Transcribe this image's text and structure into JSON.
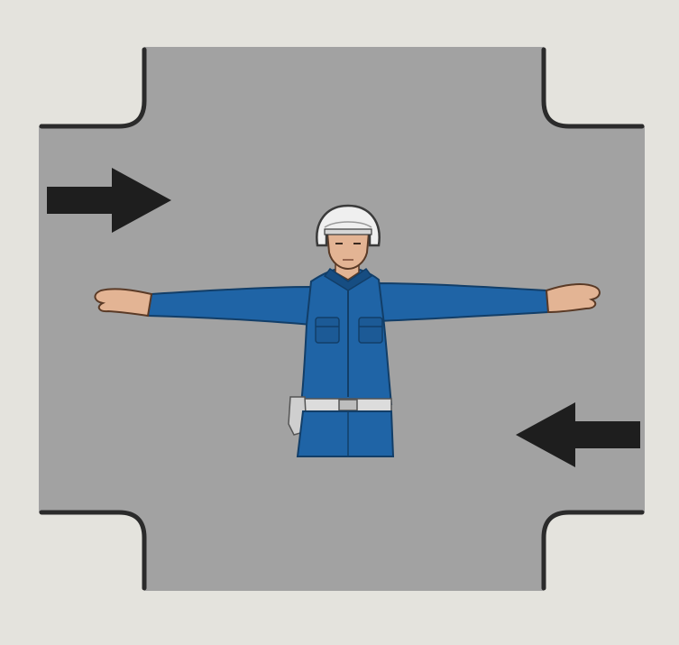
{
  "colors": {
    "paper": "#e4e3dd",
    "road": "#a2a2a2",
    "curb": "#2b2b2b",
    "arrow": "#1e1e1e",
    "uniform": "#1f64a6",
    "uniform_shadow": "#164d82",
    "skin": "#e3b494",
    "helmet": "#efefef",
    "belt": "#dcdcdc"
  },
  "arrows": [
    {
      "name": "arrow-west-entering-east",
      "direction": "east"
    },
    {
      "name": "arrow-east-entering-west",
      "direction": "west"
    }
  ],
  "icons": {
    "officer": "traffic-police-officer-icon",
    "helmet": "white-helmet-icon",
    "intersection": "crossroad-icon"
  },
  "gesture": "arms-extended-horizontally"
}
